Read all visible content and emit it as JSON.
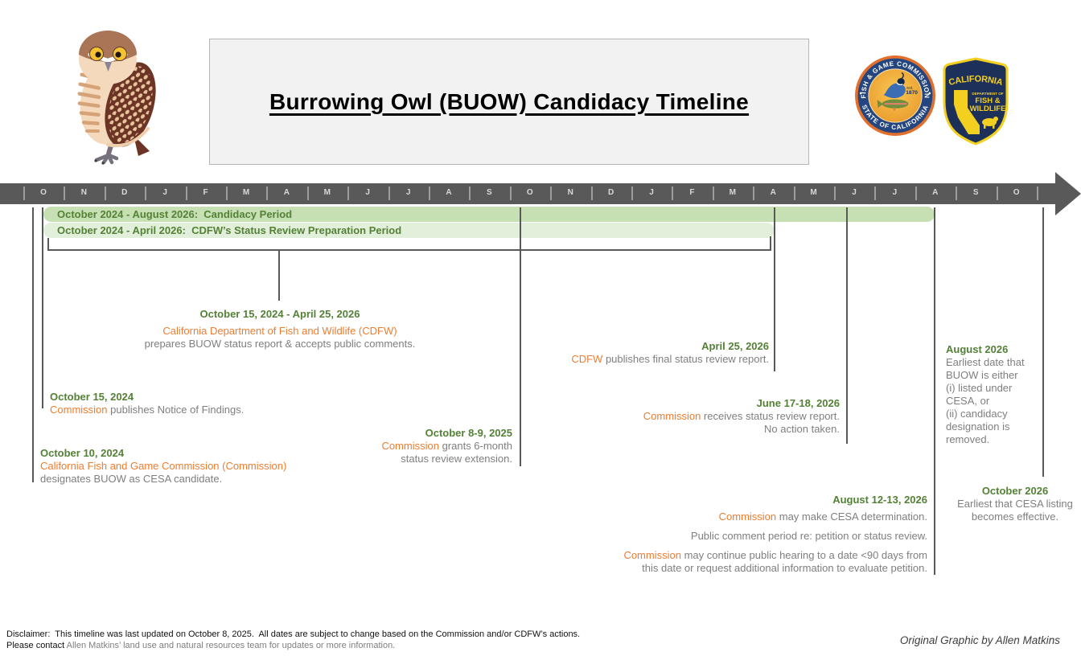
{
  "colors": {
    "accent_green_text": "#538135",
    "accent_orange": "#ED7D31",
    "body_gray": "#7F7F7F",
    "timeline_dark_gray": "#595959",
    "candidacy_bar_green": "#C6E0B4",
    "prep_bar_green": "#E2EFDA"
  },
  "header": {
    "title": "Burrowing Owl (BUOW) Candidacy Timeline",
    "commission_seal": {
      "arc_top": "FISH & GAME COMMISSION",
      "arc_bottom": "STATE OF CALIFORNIA",
      "est_line1": "est.",
      "est_line2": "1870"
    },
    "cdfw_badge": {
      "state": "CALIFORNIA",
      "dept": "DEPARTMENT OF",
      "name_line1": "FISH &",
      "name_line2": "WILDLIFE"
    }
  },
  "timeline": {
    "months": [
      "O",
      "N",
      "D",
      "J",
      "F",
      "M",
      "A",
      "M",
      "J",
      "J",
      "A",
      "S",
      "O",
      "N",
      "D",
      "J",
      "F",
      "M",
      "A",
      "M",
      "J",
      "J",
      "A",
      "S",
      "O"
    ],
    "bars": {
      "candidacy": "October 2024 - August 2026:  Candidacy Period",
      "prep": "October 2024 - April 2026:  CDFW’s Status Review Preparation Period"
    }
  },
  "events": {
    "prep_period": {
      "date": "October 15, 2024 - April 25, 2026",
      "org": "California Department of Fish and Wildlife (CDFW)",
      "body": "prepares BUOW status report & accepts public comments."
    },
    "oct_15_2024": {
      "date": "October 15, 2024",
      "org": "Commission",
      "body": " publishes Notice of Findings."
    },
    "oct_10_2024": {
      "date": "October 10, 2024",
      "org": "California Fish and Game Commission (Commission)",
      "body": "designates BUOW as CESA candidate."
    },
    "oct_8_9_2025": {
      "date": "October 8-9, 2025",
      "org": "Commission",
      "body_line1": " grants 6-month",
      "body_line2": "status review extension."
    },
    "apr_25_2026": {
      "date": "April 25, 2026",
      "org": "CDFW",
      "body": " publishes final status review report."
    },
    "jun_17_18_2026": {
      "date": "June 17-18, 2026",
      "org": "Commission",
      "body_line1": " receives status review report.",
      "body_line2": "No action taken."
    },
    "aug_2026": {
      "date": "August 2026",
      "body_lines": [
        "Earliest date that",
        "BUOW is either",
        "(i) listed under",
        "CESA, or",
        "(ii) candidacy",
        "designation is",
        "removed."
      ]
    },
    "oct_2026": {
      "date": "October 2026",
      "body_line1": "Earliest that CESA listing",
      "body_line2": "becomes effective."
    },
    "aug_12_13_2026": {
      "date": "August 12-13, 2026",
      "p1_org": "Commission",
      "p1_rest": " may make CESA determination.",
      "p2": "Public comment period re: petition or status review.",
      "p3_org": "Commission",
      "p3_rest": " may continue public hearing to a date <90 days from",
      "p4": "this date or request additional information to evaluate petition."
    }
  },
  "footer": {
    "disclaimer_line1": "Disclaimer:  This timeline was last updated on October 8, 2025.  All dates are subject to change based on the Commission and/or CDFW’s actions.",
    "disclaimer_line2_black": "Please contact ",
    "disclaimer_line2_gray": "Allen Matkins’ land use and natural resources team for updates or more information.",
    "credit": "Original Graphic by Allen Matkins"
  }
}
